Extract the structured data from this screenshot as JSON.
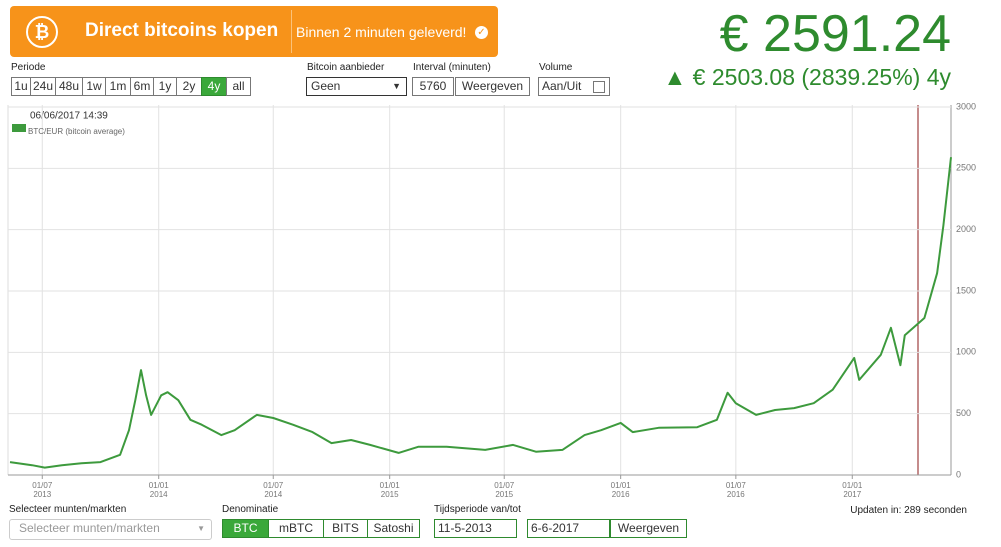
{
  "banner": {
    "title": "Direct bitcoins kopen",
    "subtitle": "Binnen 2 minuten geleverd!"
  },
  "price": "€ 2591.24",
  "change": "▲ € 2503.08 (2839.25%) 4y",
  "controls": {
    "periode": {
      "label": "Periode",
      "options": [
        "1u",
        "24u",
        "48u",
        "1w",
        "1m",
        "6m",
        "1y",
        "2y",
        "4y",
        "all"
      ],
      "selected": 8
    },
    "aanbieder": {
      "label": "Bitcoin aanbieder",
      "value": "Geen"
    },
    "interval": {
      "label": "Interval (minuten)",
      "value": "5760",
      "button": "Weergeven"
    },
    "volume": {
      "label": "Volume",
      "button": "Aan/Uit"
    }
  },
  "chart_data": {
    "type": "line",
    "annotation": "06/06/2017 14:39",
    "x": [
      "2013-05-11",
      "2013-06-15",
      "2013-07-05",
      "2013-08-01",
      "2013-09-01",
      "2013-10-01",
      "2013-11-01",
      "2013-11-15",
      "2013-11-25",
      "2013-12-04",
      "2013-12-12",
      "2013-12-20",
      "2014-01-05",
      "2014-01-15",
      "2014-02-01",
      "2014-02-20",
      "2014-03-10",
      "2014-04-10",
      "2014-05-01",
      "2014-06-05",
      "2014-07-01",
      "2014-08-01",
      "2014-09-01",
      "2014-10-01",
      "2014-11-01",
      "2014-12-01",
      "2015-01-15",
      "2015-02-15",
      "2015-04-01",
      "2015-06-01",
      "2015-07-15",
      "2015-08-20",
      "2015-10-01",
      "2015-11-05",
      "2015-12-01",
      "2016-01-01",
      "2016-01-20",
      "2016-03-01",
      "2016-05-01",
      "2016-06-01",
      "2016-06-18",
      "2016-07-01",
      "2016-08-02",
      "2016-09-01",
      "2016-10-01",
      "2016-11-01",
      "2016-12-01",
      "2017-01-04",
      "2017-01-12",
      "2017-02-15",
      "2017-03-03",
      "2017-03-18",
      "2017-03-25",
      "2017-04-25",
      "2017-05-15",
      "2017-05-25",
      "2017-06-06"
    ],
    "series": [
      {
        "name": "BTC/EUR (bitcoin average)",
        "color": "#3d9a3d",
        "values": [
          105,
          80,
          60,
          80,
          95,
          105,
          165,
          365,
          610,
          855,
          650,
          490,
          650,
          675,
          610,
          450,
          410,
          325,
          365,
          490,
          465,
          410,
          350,
          260,
          285,
          245,
          180,
          230,
          230,
          205,
          245,
          190,
          205,
          325,
          365,
          425,
          350,
          385,
          390,
          450,
          670,
          585,
          490,
          530,
          545,
          585,
          695,
          955,
          775,
          980,
          1200,
          895,
          1140,
          1280,
          1645,
          2035,
          2591
        ]
      }
    ],
    "xlim": [
      "2013-05-11",
      "2017-06-06"
    ],
    "xticks": [
      {
        "value": "2013-07-01",
        "label": "01/07 2013"
      },
      {
        "value": "2014-01-01",
        "label": "01/01 2014"
      },
      {
        "value": "2014-07-01",
        "label": "01/07 2014"
      },
      {
        "value": "2015-01-01",
        "label": "01/01 2015"
      },
      {
        "value": "2015-07-01",
        "label": "01/07 2015"
      },
      {
        "value": "2016-01-01",
        "label": "01/01 2016"
      },
      {
        "value": "2016-07-01",
        "label": "01/07 2016"
      },
      {
        "value": "2017-01-01",
        "label": "01/01 2017"
      }
    ],
    "ylim": [
      0,
      3000
    ],
    "yticks": [
      0,
      500,
      1000,
      1500,
      2000,
      2500,
      3000
    ],
    "grid": true
  },
  "footer": {
    "markets": {
      "label": "Selecteer munten/markten",
      "placeholder": "Selecteer munten/markten"
    },
    "denominatie": {
      "label": "Denominatie",
      "options": [
        "BTC",
        "mBTC",
        "BITS",
        "Satoshi"
      ],
      "selected": 0
    },
    "periode": {
      "label": "Tijdsperiode van/tot",
      "from": "11-5-2013",
      "to": "6-6-2017",
      "button": "Weergeven"
    },
    "update": "Updaten in: 289 seconden"
  }
}
